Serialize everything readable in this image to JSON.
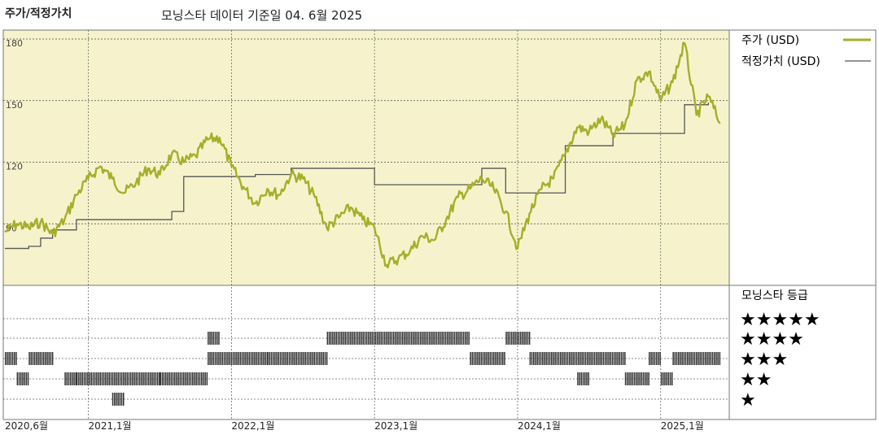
{
  "header": {
    "left_title": "주가/적정가치",
    "center_title": "모닝스타 데이터 기준일 04. 6월 2025"
  },
  "legend": {
    "price_label": "주가 (USD)",
    "fair_label": "적정가치 (USD)",
    "rating_title": "모닝스타 등급",
    "stars": [
      "★★★★★",
      "★★★★",
      "★★★",
      "★★",
      "★"
    ]
  },
  "colors": {
    "price": "#a6ae2a",
    "fair": "#555555",
    "panel_bg": "#f6f3cc",
    "rating_bar": "#333333"
  },
  "chart_data": [
    {
      "type": "line",
      "title": "주가/적정가치",
      "ylim": [
        60,
        180
      ],
      "y_ticks": [
        "180",
        "150",
        "120",
        "90"
      ],
      "x_ticks": [
        "2020,6월",
        "2021,1월",
        "2022,1월",
        "2023,1월",
        "2024,1월",
        "2025,1월"
      ],
      "series": [
        {
          "name": "주가 (USD)",
          "points": [
            [
              "2020-06",
              86
            ],
            [
              "2020-07",
              90
            ],
            [
              "2020-08",
              88
            ],
            [
              "2020-09",
              91
            ],
            [
              "2020-10",
              85
            ],
            [
              "2020-11",
              92
            ],
            [
              "2020-12",
              104
            ],
            [
              "2021-01",
              112
            ],
            [
              "2021-02",
              118
            ],
            [
              "2021-03",
              112
            ],
            [
              "2021-04",
              105
            ],
            [
              "2021-05",
              110
            ],
            [
              "2021-06",
              117
            ],
            [
              "2021-07",
              114
            ],
            [
              "2021-08",
              124
            ],
            [
              "2021-09",
              120
            ],
            [
              "2021-10",
              123
            ],
            [
              "2021-11",
              131
            ],
            [
              "2021-12",
              132
            ],
            [
              "2022-01",
              118
            ],
            [
              "2022-02",
              108
            ],
            [
              "2022-03",
              100
            ],
            [
              "2022-04",
              107
            ],
            [
              "2022-05",
              104
            ],
            [
              "2022-06",
              114
            ],
            [
              "2022-07",
              112
            ],
            [
              "2022-08",
              103
            ],
            [
              "2022-09",
              88
            ],
            [
              "2022-10",
              93
            ],
            [
              "2022-11",
              98
            ],
            [
              "2022-12",
              92
            ],
            [
              "2023-01",
              88
            ],
            [
              "2023-02",
              70
            ],
            [
              "2023-03",
              73
            ],
            [
              "2023-04",
              77
            ],
            [
              "2023-05",
              84
            ],
            [
              "2023-06",
              82
            ],
            [
              "2023-07",
              92
            ],
            [
              "2023-08",
              103
            ],
            [
              "2023-09",
              107
            ],
            [
              "2023-10",
              112
            ],
            [
              "2023-11",
              107
            ],
            [
              "2023-12",
              96
            ],
            [
              "2024-01",
              78
            ],
            [
              "2024-02",
              95
            ],
            [
              "2024-03",
              107
            ],
            [
              "2024-04",
              112
            ],
            [
              "2024-05",
              124
            ],
            [
              "2024-06",
              137
            ],
            [
              "2024-07",
              135
            ],
            [
              "2024-08",
              141
            ],
            [
              "2024-09",
              133
            ],
            [
              "2024-10",
              138
            ],
            [
              "2024-11",
              160
            ],
            [
              "2024-12",
              164
            ],
            [
              "2025-01",
              150
            ],
            [
              "2025-02",
              159
            ],
            [
              "2025-03",
              178
            ],
            [
              "2025-04",
              143
            ],
            [
              "2025-05",
              152
            ],
            [
              "2025-06",
              139
            ]
          ]
        },
        {
          "name": "적정가치 (USD)",
          "points": [
            [
              "2020-06",
              78
            ],
            [
              "2020-08",
              79
            ],
            [
              "2020-09",
              83
            ],
            [
              "2020-10",
              87
            ],
            [
              "2020-12",
              92
            ],
            [
              "2021-08",
              96
            ],
            [
              "2021-09",
              113
            ],
            [
              "2022-03",
              114
            ],
            [
              "2022-06",
              117
            ],
            [
              "2022-12",
              117
            ],
            [
              "2023-01",
              109
            ],
            [
              "2023-10",
              109
            ],
            [
              "2023-10",
              117
            ],
            [
              "2023-12",
              117
            ],
            [
              "2023-12",
              105
            ],
            [
              "2024-05",
              105
            ],
            [
              "2024-05",
              128
            ],
            [
              "2024-09",
              128
            ],
            [
              "2024-09",
              134
            ],
            [
              "2025-03",
              134
            ],
            [
              "2025-03",
              148
            ],
            [
              "2025-05",
              149
            ]
          ]
        }
      ]
    },
    {
      "type": "heatmap",
      "title": "모닝스타 등급",
      "rows": [
        "★★★★★",
        "★★★★",
        "★★★",
        "★★",
        "★"
      ],
      "segments": [
        {
          "rating": 3,
          "start": "2020-06",
          "end": "2020-07"
        },
        {
          "rating": 2,
          "start": "2020-07",
          "end": "2020-08"
        },
        {
          "rating": 3,
          "start": "2020-08",
          "end": "2020-10"
        },
        {
          "rating": 2,
          "start": "2020-11",
          "end": "2020-12"
        },
        {
          "rating": 2,
          "start": "2020-12",
          "end": "2021-07"
        },
        {
          "rating": 1,
          "start": "2021-03",
          "end": "2021-04"
        },
        {
          "rating": 2,
          "start": "2021-07",
          "end": "2021-11"
        },
        {
          "rating": 4,
          "start": "2021-11",
          "end": "2021-12"
        },
        {
          "rating": 3,
          "start": "2021-11",
          "end": "2022-04"
        },
        {
          "rating": 3,
          "start": "2022-04",
          "end": "2022-09"
        },
        {
          "rating": 4,
          "start": "2022-09",
          "end": "2023-09"
        },
        {
          "rating": 3,
          "start": "2023-09",
          "end": "2023-12"
        },
        {
          "rating": 4,
          "start": "2023-12",
          "end": "2024-02"
        },
        {
          "rating": 3,
          "start": "2024-02",
          "end": "2024-08"
        },
        {
          "rating": 2,
          "start": "2024-06",
          "end": "2024-07"
        },
        {
          "rating": 3,
          "start": "2024-08",
          "end": "2024-10"
        },
        {
          "rating": 2,
          "start": "2024-10",
          "end": "2024-12"
        },
        {
          "rating": 3,
          "start": "2024-12",
          "end": "2025-01"
        },
        {
          "rating": 2,
          "start": "2025-01",
          "end": "2025-02"
        },
        {
          "rating": 3,
          "start": "2025-02",
          "end": "2025-06"
        }
      ]
    }
  ]
}
